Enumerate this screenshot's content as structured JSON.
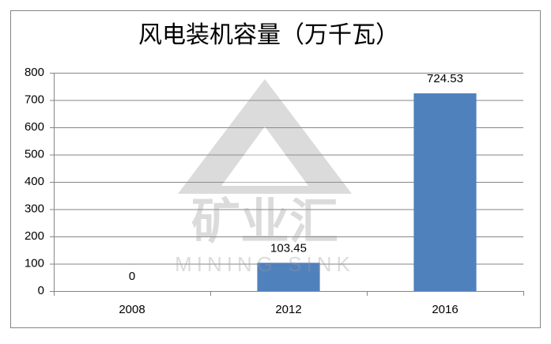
{
  "chart_data": {
    "type": "bar",
    "title": "风电装机容量（万千瓦）",
    "categories": [
      "2008",
      "2012",
      "2016"
    ],
    "values": [
      0,
      103.45,
      724.53
    ],
    "color": "#4f81bd",
    "ylim": [
      0,
      800
    ],
    "yticks": [
      0,
      100,
      200,
      300,
      400,
      500,
      600,
      700,
      800
    ],
    "grid": true,
    "annotations": [
      "矿业汇",
      "MINING SINK"
    ]
  }
}
